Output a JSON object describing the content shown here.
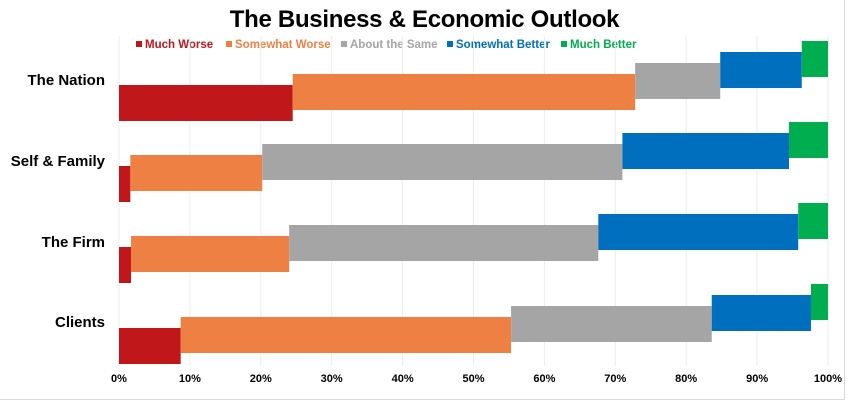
{
  "chart_data": {
    "type": "bar",
    "orientation": "horizontal",
    "stacked": true,
    "stacked_percent": true,
    "title": "The Business & Economic Outlook",
    "xlabel": "",
    "ylabel": "",
    "xlim": [
      0,
      100
    ],
    "x_ticks": [
      "0%",
      "10%",
      "20%",
      "30%",
      "40%",
      "50%",
      "60%",
      "70%",
      "80%",
      "90%",
      "100%"
    ],
    "x_tick_values": [
      0,
      10,
      20,
      30,
      40,
      50,
      60,
      70,
      80,
      90,
      100
    ],
    "grid": "vertical",
    "legend_position": "top",
    "categories": [
      "The Nation",
      "Self & Family",
      "The Firm",
      "Clients"
    ],
    "series": [
      {
        "name": "Much Worse",
        "color": "#C0171A",
        "values": [
          24.5,
          1.6,
          1.7,
          8.7
        ]
      },
      {
        "name": "Somewhat Worse",
        "color": "#EE8044",
        "values": [
          48.3,
          18.6,
          22.3,
          46.6
        ]
      },
      {
        "name": "About the Same",
        "color": "#A5A5A5",
        "values": [
          12.0,
          50.8,
          43.6,
          28.3
        ]
      },
      {
        "name": "Somewhat Better",
        "color": "#0070BE",
        "values": [
          11.5,
          23.5,
          28.2,
          14.0
        ]
      },
      {
        "name": "Much Better",
        "color": "#00AE4F",
        "values": [
          3.7,
          5.5,
          4.2,
          2.4
        ]
      }
    ]
  }
}
